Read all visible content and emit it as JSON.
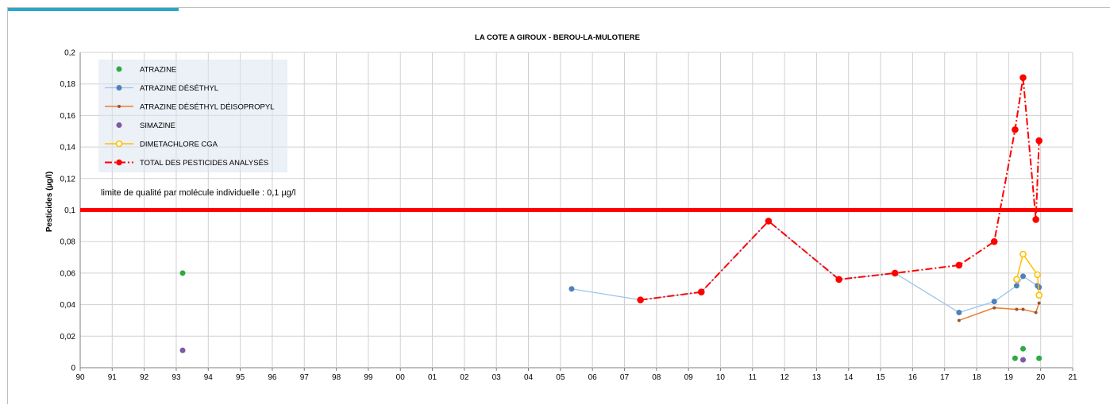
{
  "chart_data": {
    "type": "line",
    "title": "LA COTE A GIROUX - BEROU-LA-MULOTIERE",
    "xlabel": "",
    "ylabel": "Pesticides (µg/l)",
    "xlim": [
      1990,
      2021
    ],
    "ylim": [
      0,
      0.2
    ],
    "x_tick_labels": [
      "90",
      "91",
      "92",
      "93",
      "94",
      "95",
      "96",
      "97",
      "98",
      "99",
      "00",
      "01",
      "02",
      "03",
      "04",
      "05",
      "06",
      "07",
      "08",
      "09",
      "10",
      "11",
      "12",
      "13",
      "14",
      "15",
      "16",
      "17",
      "18",
      "19",
      "20",
      "21"
    ],
    "y_tick_labels": [
      "0",
      "0,02",
      "0,04",
      "0,06",
      "0,08",
      "0,1",
      "0,12",
      "0,14",
      "0,16",
      "0,18",
      "0,2"
    ],
    "grid": true,
    "legend_position": "top-left",
    "threshold": {
      "value": 0.1,
      "label": "limite de qualité  par molécule individuelle : 0,1 µg/l",
      "color": "#ff0000"
    },
    "series": [
      {
        "name": "ATRAZINE",
        "style": "markers",
        "color": "#2eaa44",
        "x": [
          1993.2,
          2019.2,
          2019.45,
          2019.95
        ],
        "y": [
          0.06,
          0.006,
          0.012,
          0.006
        ]
      },
      {
        "name": "ATRAZINE DÉSÉTHYL",
        "style": "line-markers",
        "color": "#4f81bd",
        "line_color": "#9dc3e6",
        "x": [
          2005.35,
          2007.5,
          2009.4,
          2011.5,
          2013.7,
          2015.45,
          2017.45,
          2018.55,
          2019.25,
          2019.45,
          2019.9,
          2019.95
        ],
        "y": [
          0.05,
          0.043,
          0.048,
          0.093,
          0.056,
          0.06,
          0.035,
          0.042,
          0.052,
          0.058,
          0.052,
          0.051
        ]
      },
      {
        "name": "ATRAZINE DÉSÉTHYL DÉISOPROPYL",
        "style": "line-small-markers",
        "color": "#a0522d",
        "line_color": "#ed7d31",
        "x": [
          2017.45,
          2018.55,
          2019.25,
          2019.45,
          2019.85,
          2019.95
        ],
        "y": [
          0.03,
          0.038,
          0.037,
          0.037,
          0.035,
          0.041
        ]
      },
      {
        "name": "SIMAZINE",
        "style": "markers",
        "color": "#7f5a9f",
        "x": [
          1993.2,
          2019.45
        ],
        "y": [
          0.011,
          0.005
        ]
      },
      {
        "name": "DIMETACHLORE CGA",
        "style": "line-open-markers",
        "color": "#ffc000",
        "x": [
          2019.25,
          2019.45,
          2019.9,
          2019.95
        ],
        "y": [
          0.056,
          0.072,
          0.059,
          0.046
        ]
      },
      {
        "name": "TOTAL DES PESTICIDES ANALYSÉS",
        "style": "dashdot-markers",
        "color": "#ff0000",
        "x": [
          2007.5,
          2009.4,
          2011.5,
          2013.7,
          2015.45,
          2017.45,
          2018.55,
          2019.2,
          2019.45,
          2019.85,
          2019.95
        ],
        "y": [
          0.043,
          0.048,
          0.093,
          0.056,
          0.06,
          0.065,
          0.08,
          0.151,
          0.184,
          0.094,
          0.144
        ]
      }
    ]
  }
}
